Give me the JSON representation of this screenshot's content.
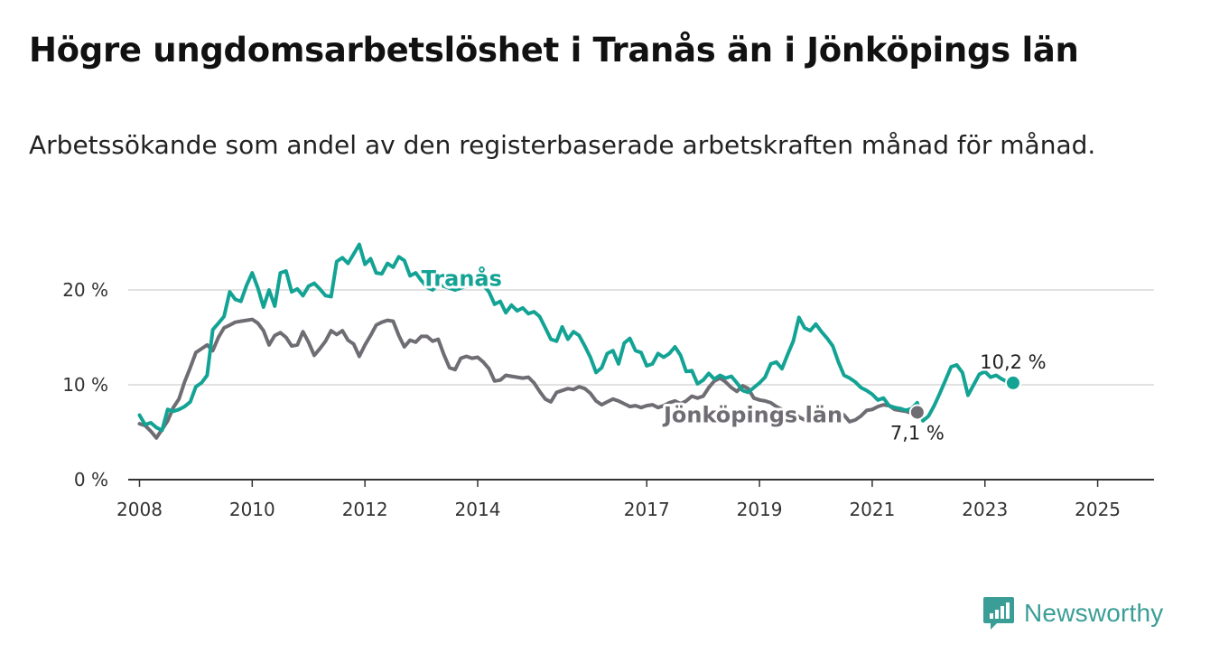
{
  "header": {
    "title": "Högre ungdomsarbetslöshet i Tranås än i Jönköpings län",
    "subtitle": "Arbetssökande som andel av den registerbaserade arbetskraften månad för månad."
  },
  "brand": {
    "name": "Newsworthy",
    "icon": "newsworthy-logo-icon",
    "color": "#3a9e96"
  },
  "colors": {
    "tranas": "#13a394",
    "jonkoping": "#6f6d73",
    "grid": "#d9d9d9",
    "axis": "#333333"
  },
  "chart_data": {
    "type": "line",
    "title": "Högre ungdomsarbetslöshet i Tranås än i Jönköpings län",
    "xlabel": "",
    "ylabel": "",
    "xlim": [
      2007.8,
      2026.0
    ],
    "ylim": [
      0,
      22
    ],
    "yticks": [
      0,
      10,
      20
    ],
    "ytick_labels": [
      "0 %",
      "10 %",
      "20 %"
    ],
    "xticks": [
      2008,
      2010,
      2012,
      2014,
      2017,
      2019,
      2021,
      2023,
      2025
    ],
    "xtick_labels": [
      "2008",
      "2010",
      "2012",
      "2014",
      "2017",
      "2019",
      "2021",
      "2023",
      "2025"
    ],
    "grid": true,
    "series": [
      {
        "name": "Tranås",
        "color": "#13a394",
        "end_label": "10,2 %",
        "points": [
          [
            2008.0,
            6.8
          ],
          [
            2008.1,
            5.8
          ],
          [
            2008.2,
            6.0
          ],
          [
            2008.3,
            5.5
          ],
          [
            2008.4,
            5.2
          ],
          [
            2008.5,
            7.4
          ],
          [
            2008.6,
            7.2
          ],
          [
            2008.7,
            7.4
          ],
          [
            2008.8,
            7.7
          ],
          [
            2008.9,
            8.2
          ],
          [
            2009.0,
            9.8
          ],
          [
            2009.1,
            10.2
          ],
          [
            2009.2,
            11.0
          ],
          [
            2009.3,
            15.8
          ],
          [
            2009.4,
            16.5
          ],
          [
            2009.5,
            17.2
          ],
          [
            2009.6,
            19.8
          ],
          [
            2009.7,
            19.0
          ],
          [
            2009.8,
            18.8
          ],
          [
            2009.9,
            20.5
          ],
          [
            2010.0,
            21.8
          ],
          [
            2010.1,
            20.2
          ],
          [
            2010.2,
            18.2
          ],
          [
            2010.3,
            20.0
          ],
          [
            2010.4,
            18.3
          ],
          [
            2010.5,
            21.8
          ],
          [
            2010.6,
            22.0
          ],
          [
            2010.7,
            19.8
          ],
          [
            2010.8,
            20.1
          ],
          [
            2010.9,
            19.4
          ],
          [
            2011.0,
            20.4
          ],
          [
            2011.1,
            20.7
          ],
          [
            2011.2,
            20.1
          ],
          [
            2011.3,
            19.4
          ],
          [
            2011.4,
            19.3
          ],
          [
            2011.5,
            23.0
          ],
          [
            2011.6,
            23.4
          ],
          [
            2011.7,
            22.8
          ],
          [
            2011.8,
            23.8
          ],
          [
            2011.9,
            24.8
          ],
          [
            2012.0,
            22.7
          ],
          [
            2012.1,
            23.3
          ],
          [
            2012.2,
            21.8
          ],
          [
            2012.3,
            21.7
          ],
          [
            2012.4,
            22.8
          ],
          [
            2012.5,
            22.4
          ],
          [
            2012.6,
            23.5
          ],
          [
            2012.7,
            23.1
          ],
          [
            2012.8,
            21.5
          ],
          [
            2012.9,
            21.8
          ],
          [
            2013.0,
            21.0
          ],
          [
            2013.1,
            20.3
          ],
          [
            2013.2,
            20.0
          ],
          [
            2013.3,
            20.6
          ],
          [
            2013.6,
            20.0
          ],
          [
            2013.8,
            20.4
          ],
          [
            2014.0,
            20.5
          ],
          [
            2014.1,
            20.5
          ],
          [
            2014.2,
            19.8
          ],
          [
            2014.3,
            18.5
          ],
          [
            2014.4,
            18.8
          ],
          [
            2014.5,
            17.6
          ],
          [
            2014.6,
            18.4
          ],
          [
            2014.7,
            17.8
          ],
          [
            2014.8,
            18.1
          ],
          [
            2014.9,
            17.5
          ],
          [
            2015.0,
            17.7
          ],
          [
            2015.1,
            17.2
          ],
          [
            2015.2,
            16.0
          ],
          [
            2015.3,
            14.8
          ],
          [
            2015.4,
            14.6
          ],
          [
            2015.5,
            16.1
          ],
          [
            2015.6,
            14.8
          ],
          [
            2015.7,
            15.6
          ],
          [
            2015.8,
            15.2
          ],
          [
            2015.9,
            14.1
          ],
          [
            2016.0,
            12.9
          ],
          [
            2016.1,
            11.3
          ],
          [
            2016.2,
            11.8
          ],
          [
            2016.3,
            13.3
          ],
          [
            2016.4,
            13.6
          ],
          [
            2016.5,
            12.2
          ],
          [
            2016.6,
            14.4
          ],
          [
            2016.7,
            14.9
          ],
          [
            2016.8,
            13.6
          ],
          [
            2016.9,
            13.4
          ],
          [
            2017.0,
            12.0
          ],
          [
            2017.1,
            12.2
          ],
          [
            2017.2,
            13.3
          ],
          [
            2017.3,
            12.9
          ],
          [
            2017.4,
            13.3
          ],
          [
            2017.5,
            14.0
          ],
          [
            2017.6,
            13.1
          ],
          [
            2017.7,
            11.4
          ],
          [
            2017.8,
            11.5
          ],
          [
            2017.9,
            10.1
          ],
          [
            2018.0,
            10.5
          ],
          [
            2018.1,
            11.2
          ],
          [
            2018.2,
            10.6
          ],
          [
            2018.3,
            11.0
          ],
          [
            2018.4,
            10.7
          ],
          [
            2018.5,
            10.9
          ],
          [
            2018.6,
            10.2
          ],
          [
            2018.7,
            9.4
          ],
          [
            2018.8,
            9.2
          ],
          [
            2018.9,
            9.7
          ],
          [
            2019.0,
            10.2
          ],
          [
            2019.1,
            10.8
          ],
          [
            2019.2,
            12.2
          ],
          [
            2019.3,
            12.4
          ],
          [
            2019.4,
            11.7
          ],
          [
            2019.5,
            13.2
          ],
          [
            2019.6,
            14.6
          ],
          [
            2019.7,
            17.1
          ],
          [
            2019.8,
            16.0
          ],
          [
            2019.9,
            15.7
          ],
          [
            2020.0,
            16.4
          ],
          [
            2020.1,
            15.6
          ],
          [
            2020.2,
            14.9
          ],
          [
            2020.3,
            14.1
          ],
          [
            2020.4,
            12.4
          ],
          [
            2020.5,
            11.0
          ],
          [
            2020.6,
            10.7
          ],
          [
            2020.7,
            10.3
          ],
          [
            2020.8,
            9.7
          ],
          [
            2020.9,
            9.4
          ],
          [
            2021.0,
            9.0
          ],
          [
            2021.1,
            8.4
          ],
          [
            2021.2,
            8.6
          ],
          [
            2021.3,
            7.8
          ],
          [
            2021.4,
            7.6
          ],
          [
            2021.5,
            7.5
          ],
          [
            2021.6,
            7.3
          ],
          [
            2021.7,
            7.5
          ],
          [
            2021.8,
            8.1
          ],
          [
            2021.9,
            6.2
          ],
          [
            2022.0,
            6.7
          ],
          [
            2022.1,
            7.8
          ],
          [
            2022.2,
            9.1
          ],
          [
            2022.3,
            10.5
          ],
          [
            2022.4,
            11.9
          ],
          [
            2022.5,
            12.1
          ],
          [
            2022.6,
            11.3
          ],
          [
            2022.7,
            8.9
          ],
          [
            2022.8,
            10.0
          ],
          [
            2022.9,
            11.1
          ],
          [
            2023.0,
            11.4
          ],
          [
            2023.1,
            10.8
          ],
          [
            2023.2,
            11.0
          ],
          [
            2023.3,
            10.6
          ],
          [
            2023.4,
            10.3
          ],
          [
            2023.5,
            10.2
          ]
        ]
      },
      {
        "name": "Jönköpings län",
        "color": "#6f6d73",
        "end_label": "7,1 %",
        "points": [
          [
            2008.0,
            5.9
          ],
          [
            2008.1,
            5.7
          ],
          [
            2008.2,
            5.1
          ],
          [
            2008.3,
            4.4
          ],
          [
            2008.4,
            5.3
          ],
          [
            2008.5,
            6.2
          ],
          [
            2008.6,
            7.6
          ],
          [
            2008.7,
            8.5
          ],
          [
            2008.8,
            10.3
          ],
          [
            2008.9,
            11.8
          ],
          [
            2009.0,
            13.4
          ],
          [
            2009.1,
            13.8
          ],
          [
            2009.2,
            14.2
          ],
          [
            2009.3,
            13.6
          ],
          [
            2009.4,
            15.0
          ],
          [
            2009.5,
            16.0
          ],
          [
            2009.6,
            16.3
          ],
          [
            2009.7,
            16.6
          ],
          [
            2009.8,
            16.7
          ],
          [
            2009.9,
            16.8
          ],
          [
            2010.0,
            16.9
          ],
          [
            2010.1,
            16.5
          ],
          [
            2010.2,
            15.7
          ],
          [
            2010.3,
            14.2
          ],
          [
            2010.4,
            15.2
          ],
          [
            2010.5,
            15.5
          ],
          [
            2010.6,
            15.0
          ],
          [
            2010.7,
            14.1
          ],
          [
            2010.8,
            14.2
          ],
          [
            2010.9,
            15.6
          ],
          [
            2011.0,
            14.5
          ],
          [
            2011.1,
            13.1
          ],
          [
            2011.2,
            13.8
          ],
          [
            2011.3,
            14.6
          ],
          [
            2011.4,
            15.7
          ],
          [
            2011.5,
            15.3
          ],
          [
            2011.6,
            15.7
          ],
          [
            2011.7,
            14.7
          ],
          [
            2011.8,
            14.3
          ],
          [
            2011.9,
            13.0
          ],
          [
            2012.0,
            14.2
          ],
          [
            2012.1,
            15.2
          ],
          [
            2012.2,
            16.3
          ],
          [
            2012.3,
            16.6
          ],
          [
            2012.4,
            16.8
          ],
          [
            2012.5,
            16.7
          ],
          [
            2012.6,
            15.2
          ],
          [
            2012.7,
            14.0
          ],
          [
            2012.8,
            14.7
          ],
          [
            2012.9,
            14.5
          ],
          [
            2013.0,
            15.1
          ],
          [
            2013.1,
            15.1
          ],
          [
            2013.2,
            14.6
          ],
          [
            2013.3,
            14.8
          ],
          [
            2013.4,
            13.2
          ],
          [
            2013.5,
            11.8
          ],
          [
            2013.6,
            11.6
          ],
          [
            2013.7,
            12.8
          ],
          [
            2013.8,
            13.0
          ],
          [
            2013.9,
            12.8
          ],
          [
            2014.0,
            12.9
          ],
          [
            2014.1,
            12.4
          ],
          [
            2014.2,
            11.7
          ],
          [
            2014.3,
            10.4
          ],
          [
            2014.4,
            10.5
          ],
          [
            2014.5,
            11.0
          ],
          [
            2014.6,
            10.9
          ],
          [
            2014.7,
            10.8
          ],
          [
            2014.8,
            10.7
          ],
          [
            2014.9,
            10.8
          ],
          [
            2015.0,
            10.2
          ],
          [
            2015.1,
            9.3
          ],
          [
            2015.2,
            8.5
          ],
          [
            2015.3,
            8.2
          ],
          [
            2015.4,
            9.2
          ],
          [
            2015.5,
            9.4
          ],
          [
            2015.6,
            9.6
          ],
          [
            2015.7,
            9.5
          ],
          [
            2015.8,
            9.8
          ],
          [
            2015.9,
            9.6
          ],
          [
            2016.0,
            9.1
          ],
          [
            2016.1,
            8.3
          ],
          [
            2016.2,
            7.9
          ],
          [
            2016.3,
            8.2
          ],
          [
            2016.4,
            8.5
          ],
          [
            2016.5,
            8.3
          ],
          [
            2016.6,
            8.0
          ],
          [
            2016.7,
            7.7
          ],
          [
            2016.8,
            7.8
          ],
          [
            2016.9,
            7.6
          ],
          [
            2017.0,
            7.8
          ],
          [
            2017.1,
            7.9
          ],
          [
            2017.2,
            7.6
          ],
          [
            2017.3,
            7.8
          ],
          [
            2017.4,
            8.1
          ],
          [
            2017.5,
            8.3
          ],
          [
            2017.6,
            8.0
          ],
          [
            2017.7,
            8.3
          ],
          [
            2017.8,
            8.8
          ],
          [
            2017.9,
            8.6
          ],
          [
            2018.0,
            8.8
          ],
          [
            2018.1,
            9.7
          ],
          [
            2018.2,
            10.4
          ],
          [
            2018.3,
            10.7
          ],
          [
            2018.4,
            10.3
          ],
          [
            2018.5,
            9.7
          ],
          [
            2018.6,
            9.3
          ],
          [
            2018.7,
            9.9
          ],
          [
            2018.8,
            9.6
          ],
          [
            2018.9,
            8.6
          ],
          [
            2019.0,
            8.4
          ],
          [
            2019.1,
            8.3
          ],
          [
            2019.2,
            8.1
          ],
          [
            2019.3,
            7.7
          ],
          [
            2019.4,
            7.4
          ],
          [
            2019.5,
            7.0
          ],
          [
            2019.6,
            7.0
          ],
          [
            2019.7,
            6.6
          ],
          [
            2019.8,
            6.3
          ],
          [
            2019.9,
            6.4
          ],
          [
            2020.0,
            6.9
          ],
          [
            2020.1,
            6.9
          ],
          [
            2020.2,
            7.1
          ],
          [
            2020.3,
            7.3
          ],
          [
            2020.4,
            7.2
          ],
          [
            2020.5,
            6.8
          ],
          [
            2020.6,
            6.1
          ],
          [
            2020.7,
            6.3
          ],
          [
            2020.8,
            6.7
          ],
          [
            2020.9,
            7.3
          ],
          [
            2021.0,
            7.4
          ],
          [
            2021.1,
            7.7
          ],
          [
            2021.2,
            7.9
          ],
          [
            2021.3,
            7.8
          ],
          [
            2021.4,
            7.4
          ],
          [
            2021.5,
            7.3
          ],
          [
            2021.6,
            7.2
          ],
          [
            2021.7,
            7.0
          ],
          [
            2021.8,
            7.1
          ]
        ]
      }
    ],
    "labels": [
      {
        "text": "Tranås",
        "series": "Tranås",
        "x": 2013.0,
        "y": 21.2
      },
      {
        "text": "Jönköpings län",
        "series": "Jönköpings län",
        "x": 2017.3,
        "y": 6.8
      }
    ]
  }
}
